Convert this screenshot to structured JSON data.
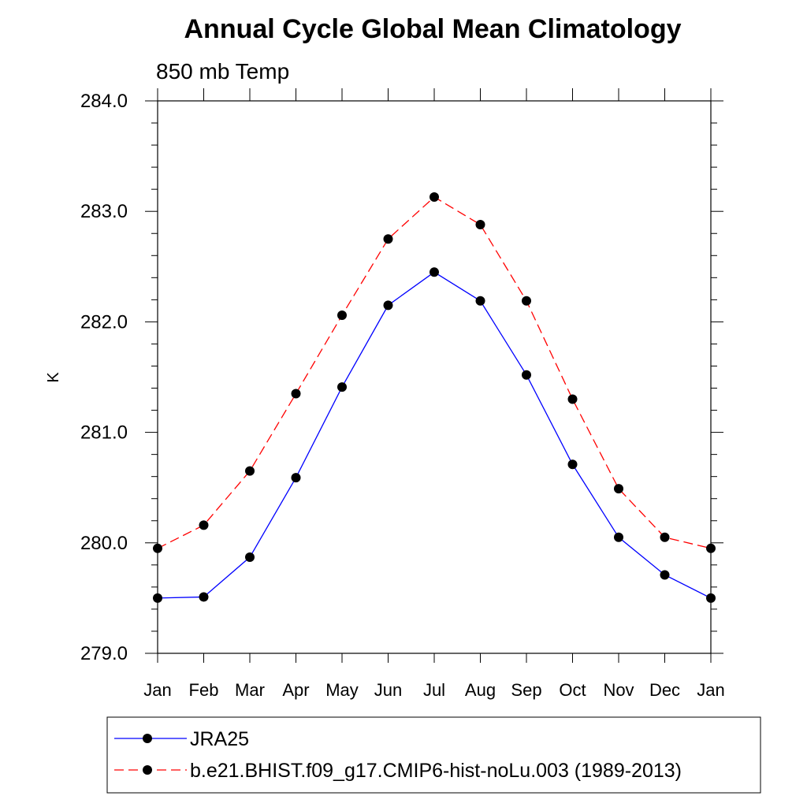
{
  "chart_data": {
    "type": "line",
    "title": "Annual Cycle Global Mean Climatology",
    "subtitle": "850 mb Temp",
    "xlabel": "",
    "ylabel": "K",
    "categories": [
      "Jan",
      "Feb",
      "Mar",
      "Apr",
      "May",
      "Jun",
      "Jul",
      "Aug",
      "Sep",
      "Oct",
      "Nov",
      "Dec",
      "Jan"
    ],
    "ylim": [
      279.0,
      284.0
    ],
    "yticks": [
      279.0,
      280.0,
      281.0,
      282.0,
      283.0,
      284.0
    ],
    "ytick_labels": [
      "279.0",
      "280.0",
      "281.0",
      "282.0",
      "283.0",
      "284.0"
    ],
    "minor_ytick_step": 0.2,
    "grid": false,
    "legend_position": "bottom",
    "series": [
      {
        "name": "JRA25",
        "color": "#0000ff",
        "line_style": "solid",
        "marker": "filled-circle",
        "values": [
          279.5,
          279.51,
          279.87,
          280.59,
          281.41,
          282.15,
          282.45,
          282.19,
          281.52,
          280.71,
          280.05,
          279.71,
          279.5
        ]
      },
      {
        "name": "b.e21.BHIST.f09_g17.CMIP6-hist-noLu.003 (1989-2013)",
        "color": "#ff0000",
        "line_style": "dashed",
        "marker": "filled-circle",
        "values": [
          279.95,
          280.16,
          280.65,
          281.35,
          282.06,
          282.75,
          283.13,
          282.88,
          282.19,
          281.3,
          280.49,
          280.05,
          279.95
        ]
      }
    ]
  }
}
